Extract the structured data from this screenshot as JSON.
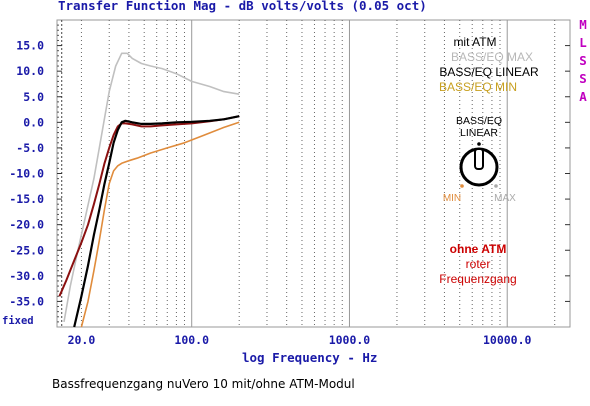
{
  "chart_data": {
    "type": "line",
    "title": "Transfer Function Mag - dB volts/volts (0.05 oct)",
    "xlabel": "log Frequency - Hz",
    "ylabel": "",
    "x_scale": "log",
    "xlim": [
      14,
      25000
    ],
    "ylim": [
      -40,
      20
    ],
    "x_ticks": [
      "20.0",
      "100.0",
      "1000.0",
      "10000.0"
    ],
    "y_ticks": [
      "15.0",
      "10.0",
      "5.0",
      "0.0",
      "-5.0",
      "-10.0",
      "-15.0",
      "-20.0",
      "-25.0",
      "-30.0",
      "-35.0"
    ],
    "y_bottom_label": "fixed",
    "grid": true,
    "side_label": [
      "M",
      "L",
      "S",
      "S",
      "A"
    ],
    "caption": "Bassfrequenzgang nuVero 10 mit/ohne ATM-Modul",
    "annotations": {
      "mit_heading": "mit ATM",
      "max_label": "BASS/EQ MAX",
      "linear_label": "BASS/EQ LINEAR",
      "min_label": "BASS/EQ MIN",
      "knob_label_line1": "BASS/EQ",
      "knob_label_line2": "LINEAR",
      "knob_min": "MIN",
      "knob_max": "MAX",
      "ohne_heading": "ohne ATM",
      "ohne_line1": "roter",
      "ohne_line2": "Frequenzgang"
    },
    "series": [
      {
        "name": "BASS/EQ MAX",
        "color": "#c0c0c0",
        "x": [
          15.5,
          17,
          19,
          21,
          24,
          27,
          30,
          33,
          36,
          39,
          42,
          48,
          55,
          65,
          80,
          100,
          130,
          160,
          200
        ],
        "y": [
          -39,
          -32,
          -25,
          -19,
          -11,
          -2,
          6,
          11,
          13.5,
          13.5,
          12.5,
          11.5,
          11,
          10.5,
          9.5,
          8,
          7,
          6,
          5.5
        ]
      },
      {
        "name": "BASS/EQ LINEAR",
        "color": "#000000",
        "x": [
          18,
          20,
          22,
          24,
          26,
          28,
          30,
          32,
          34,
          36,
          38,
          42,
          48,
          55,
          65,
          80,
          100,
          130,
          160,
          200
        ],
        "y": [
          -40,
          -34,
          -28,
          -22,
          -17,
          -12,
          -8,
          -4,
          -1.5,
          0,
          0.3,
          0,
          -0.3,
          -0.3,
          -0.2,
          0,
          0.1,
          0.3,
          0.6,
          1.2
        ]
      },
      {
        "name": "BASS/EQ MIN",
        "color": "#e08c3c",
        "x": [
          20,
          22,
          24,
          26,
          28,
          30,
          32,
          34,
          36,
          40,
          45,
          55,
          70,
          90,
          120,
          160,
          200
        ],
        "y": [
          -40,
          -35,
          -29,
          -23,
          -17,
          -12,
          -9.5,
          -8.5,
          -8,
          -7.5,
          -7,
          -6,
          -5,
          -4,
          -2.5,
          -1,
          0
        ]
      },
      {
        "name": "ohne ATM",
        "color": "#8b1010",
        "x": [
          14.5,
          16,
          18,
          20,
          22,
          24,
          26,
          28,
          30,
          32,
          34,
          36,
          38,
          42,
          48,
          55,
          65,
          80,
          100,
          130,
          160,
          200
        ],
        "y": [
          -34,
          -31,
          -27,
          -23.5,
          -20,
          -16,
          -12,
          -8,
          -5,
          -2.5,
          -0.8,
          -0.2,
          -0.2,
          -0.4,
          -0.8,
          -0.8,
          -0.6,
          -0.4,
          -0.2,
          0.2,
          0.6,
          1.2
        ]
      }
    ]
  }
}
